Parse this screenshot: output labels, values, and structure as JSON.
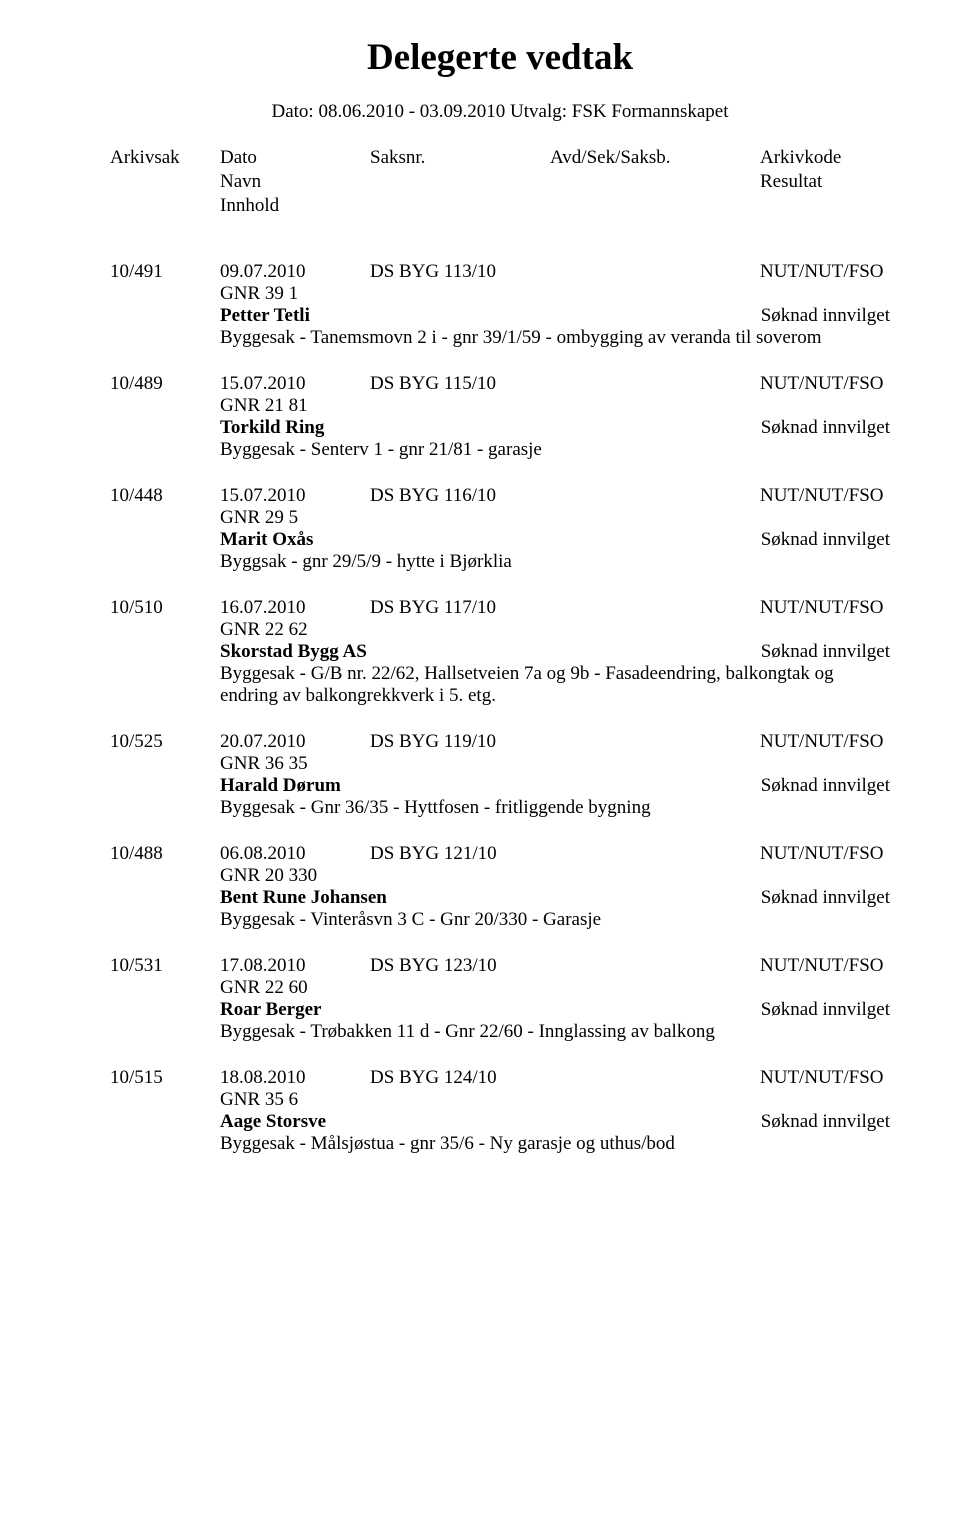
{
  "title": "Delegerte vedtak",
  "subtitle": "Dato: 08.06.2010 - 03.09.2010  Utvalg: FSK Formannskapet",
  "headers": {
    "arkivsak": "Arkivsak",
    "dato": "Dato",
    "saksnr": "Saksnr.",
    "avd": "Avd/Sek/Saksb.",
    "arkivkode": "Arkivkode",
    "navn": "Navn",
    "resultat": "Resultat",
    "innhold": "Innhold"
  },
  "entries": [
    {
      "arkivsak": "10/491",
      "dato": "09.07.2010",
      "saksnr": "DS BYG 113/10",
      "arkivkode": "NUT/NUT/FSO",
      "gnr": "GNR  39    1",
      "name": "Petter Tetli",
      "result": "Søknad innvilget",
      "desc": "Byggesak - Tanemsmovn 2 i - gnr 39/1/59 - ombygging av veranda til soverom"
    },
    {
      "arkivsak": "10/489",
      "dato": "15.07.2010",
      "saksnr": "DS BYG 115/10",
      "arkivkode": "NUT/NUT/FSO",
      "gnr": "GNR  21  81",
      "name": "Torkild Ring",
      "result": "Søknad innvilget",
      "desc": "Byggesak - Senterv 1 - gnr 21/81 - garasje"
    },
    {
      "arkivsak": "10/448",
      "dato": "15.07.2010",
      "saksnr": "DS BYG 116/10",
      "arkivkode": "NUT/NUT/FSO",
      "gnr": "GNR  29    5",
      "name": "Marit Oxås",
      "result": "Søknad innvilget",
      "desc": "Byggsak - gnr 29/5/9 - hytte i Bjørklia"
    },
    {
      "arkivsak": "10/510",
      "dato": "16.07.2010",
      "saksnr": "DS BYG 117/10",
      "arkivkode": "NUT/NUT/FSO",
      "gnr": "GNR  22  62",
      "name": "Skorstad Bygg AS",
      "result": "Søknad innvilget",
      "desc": "Byggesak - G/B nr. 22/62, Hallsetveien 7a og 9b - Fasadeendring, balkongtak og endring av balkongrekkverk i 5. etg."
    },
    {
      "arkivsak": "10/525",
      "dato": "20.07.2010",
      "saksnr": "DS BYG 119/10",
      "arkivkode": "NUT/NUT/FSO",
      "gnr": "GNR  36  35",
      "name": "Harald Dørum",
      "result": "Søknad innvilget",
      "desc": "Byggesak - Gnr 36/35 - Hyttfosen - fritliggende bygning"
    },
    {
      "arkivsak": "10/488",
      "dato": "06.08.2010",
      "saksnr": "DS BYG 121/10",
      "arkivkode": "NUT/NUT/FSO",
      "gnr": "GNR  20 330",
      "name": "Bent Rune Johansen",
      "result": "Søknad innvilget",
      "desc": "Byggesak - Vinteråsvn 3 C - Gnr 20/330 - Garasje"
    },
    {
      "arkivsak": "10/531",
      "dato": "17.08.2010",
      "saksnr": "DS BYG 123/10",
      "arkivkode": "NUT/NUT/FSO",
      "gnr": "GNR  22  60",
      "name": "Roar Berger",
      "result": "Søknad innvilget",
      "desc": "Byggesak - Trøbakken 11 d - Gnr 22/60 - Innglassing av balkong"
    },
    {
      "arkivsak": "10/515",
      "dato": "18.08.2010",
      "saksnr": "DS BYG 124/10",
      "arkivkode": "NUT/NUT/FSO",
      "gnr": "GNR  35    6",
      "name": "Aage Storsve",
      "result": "Søknad innvilget",
      "desc": "Byggesak - Målsjøstua - gnr 35/6 - Ny garasje og uthus/bod"
    }
  ]
}
